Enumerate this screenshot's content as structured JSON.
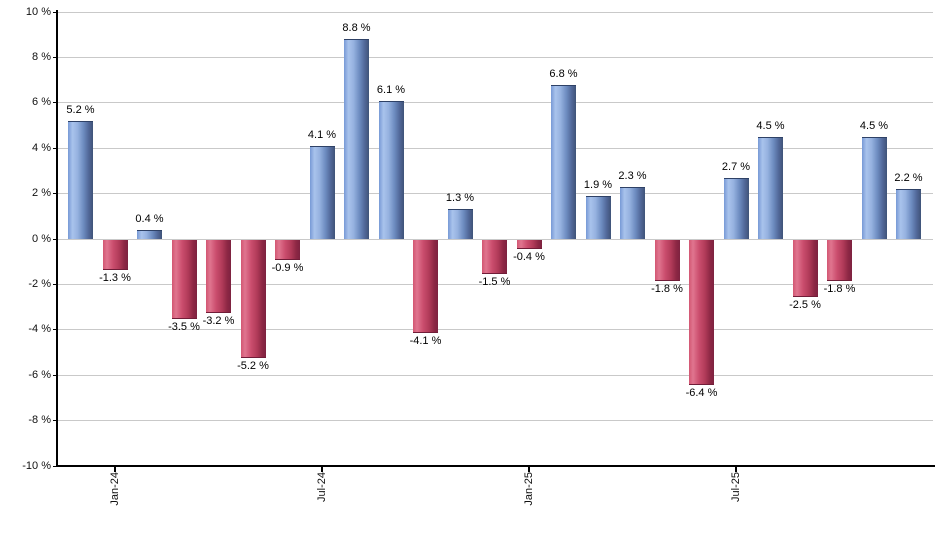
{
  "chart_data": {
    "type": "bar",
    "title": "",
    "xlabel": "",
    "ylabel": "",
    "ylim": [
      -10,
      10
    ],
    "grid": "horizontal",
    "legend": "none",
    "y_ticks": [
      {
        "value": 10,
        "label": "10 %"
      },
      {
        "value": 8,
        "label": "8 %"
      },
      {
        "value": 6,
        "label": "6 %"
      },
      {
        "value": 4,
        "label": "4 %"
      },
      {
        "value": 2,
        "label": "2 %"
      },
      {
        "value": 0,
        "label": "0 %"
      },
      {
        "value": -2,
        "label": "-2 %"
      },
      {
        "value": -4,
        "label": "-4 %"
      },
      {
        "value": -6,
        "label": "-6 %"
      },
      {
        "value": -8,
        "label": "-8 %"
      },
      {
        "value": -10,
        "label": "-10 %"
      }
    ],
    "values": [
      5.2,
      -1.3,
      0.4,
      -3.5,
      -3.2,
      -5.2,
      -0.9,
      4.1,
      8.8,
      6.1,
      -4.1,
      1.3,
      -1.5,
      -0.4,
      6.8,
      1.9,
      2.3,
      -1.8,
      -6.4,
      2.7,
      4.5,
      -2.5,
      -1.8,
      4.5,
      2.2
    ],
    "value_labels": [
      "5.2 %",
      "-1.3 %",
      "0.4 %",
      "-3.5 %",
      "-3.2 %",
      "-5.2 %",
      "-0.9 %",
      "4.1 %",
      "8.8 %",
      "6.1 %",
      "-4.1 %",
      "1.3 %",
      "-1.5 %",
      "-0.4 %",
      "6.8 %",
      "1.9 %",
      "2.3 %",
      "-1.8 %",
      "-6.4 %",
      "2.7 %",
      "4.5 %",
      "-2.5 %",
      "-1.8 %",
      "4.5 %",
      "2.2 %"
    ],
    "x_ticks": [
      {
        "label": "Jan-24",
        "index": 1
      },
      {
        "label": "Jul-24",
        "index": 7
      },
      {
        "label": "Jan-25",
        "index": 13
      },
      {
        "label": "Jul-25",
        "index": 19
      }
    ],
    "colors": {
      "positive_bar": "#7b9ad4",
      "negative_bar": "#cf4d6d",
      "gridline": "#c9c9c9",
      "axis": "#000000",
      "label_text": "#000000"
    }
  }
}
